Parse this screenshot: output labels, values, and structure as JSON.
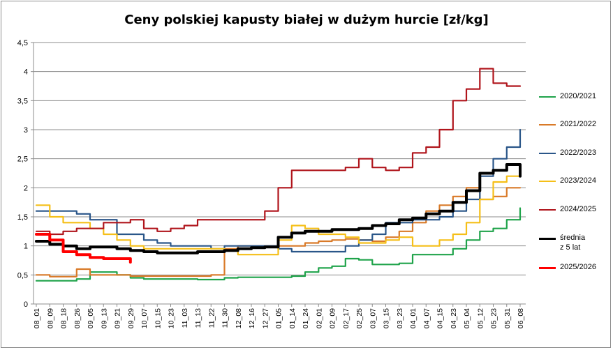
{
  "chart_data": {
    "type": "line",
    "title": "Ceny polskiej kapusty białej w dużym hurcie [zł/kg]",
    "xlabel": "",
    "ylabel": "",
    "ylim": [
      0,
      4.5
    ],
    "ytick_labels": [
      "0",
      "0,5",
      "1",
      "1,5",
      "2",
      "2,5",
      "3",
      "3,5",
      "4",
      "4,5"
    ],
    "grid": "horizontal",
    "legend_position": "right",
    "categories": [
      "08_01",
      "08_09",
      "08_18",
      "08_26",
      "09_05",
      "09_13",
      "09_21",
      "09_29",
      "10_07",
      "10_15",
      "10_23",
      "11_03",
      "11_13",
      "11_22",
      "11_30",
      "12_08",
      "12_16",
      "12_27",
      "01_05",
      "01_14",
      "01_24",
      "02_01",
      "02_09",
      "02_17",
      "02_25",
      "03_07",
      "03_15",
      "03_23",
      "04_01",
      "04_07",
      "04_15",
      "04_23",
      "05_04",
      "05_12",
      "05_23",
      "05_31",
      "06_08"
    ],
    "series": [
      {
        "name": "2020/2021",
        "color": "#1fa34a",
        "values": [
          0.4,
          0.4,
          0.4,
          0.43,
          0.55,
          0.55,
          0.5,
          0.45,
          0.43,
          0.43,
          0.43,
          0.43,
          0.42,
          0.42,
          0.45,
          0.46,
          0.46,
          0.46,
          0.46,
          0.48,
          0.55,
          0.62,
          0.65,
          0.78,
          0.76,
          0.68,
          0.68,
          0.7,
          0.85,
          0.85,
          0.85,
          0.95,
          1.1,
          1.25,
          1.3,
          1.45,
          1.65
        ]
      },
      {
        "name": "2021/2022",
        "color": "#d97a28",
        "values": [
          0.5,
          0.47,
          0.47,
          0.6,
          0.5,
          0.5,
          0.5,
          0.48,
          0.48,
          0.48,
          0.48,
          0.48,
          0.48,
          0.5,
          0.95,
          1.0,
          1.0,
          1.0,
          1.0,
          1.0,
          1.05,
          1.08,
          1.1,
          1.12,
          1.1,
          1.08,
          1.15,
          1.25,
          1.4,
          1.6,
          1.7,
          1.85,
          2.0,
          1.8,
          1.85,
          2.0,
          2.0
        ]
      },
      {
        "name": "2022/2023",
        "color": "#2a5689",
        "values": [
          1.6,
          1.6,
          1.6,
          1.55,
          1.45,
          1.45,
          1.2,
          1.2,
          1.1,
          1.05,
          1.0,
          1.0,
          1.0,
          0.95,
          1.0,
          1.0,
          1.0,
          1.0,
          0.95,
          0.9,
          0.9,
          0.9,
          0.9,
          1.0,
          1.1,
          1.2,
          1.4,
          1.4,
          1.45,
          1.45,
          1.5,
          1.6,
          1.8,
          2.2,
          2.5,
          2.7,
          3.0
        ]
      },
      {
        "name": "2023/2024",
        "color": "#f5bf18",
        "values": [
          1.7,
          1.5,
          1.4,
          1.4,
          1.3,
          1.2,
          1.1,
          1.0,
          0.95,
          0.95,
          0.95,
          0.95,
          0.95,
          0.95,
          0.92,
          0.85,
          0.85,
          0.85,
          1.1,
          1.35,
          1.3,
          1.2,
          1.2,
          1.15,
          1.05,
          1.05,
          1.1,
          1.15,
          1.0,
          1.0,
          1.1,
          1.2,
          1.4,
          1.8,
          2.1,
          2.2,
          2.2
        ]
      },
      {
        "name": "2024/2025",
        "color": "#b0151c",
        "values": [
          1.25,
          1.2,
          1.25,
          1.3,
          1.3,
          1.4,
          1.4,
          1.45,
          1.3,
          1.25,
          1.3,
          1.35,
          1.45,
          1.45,
          1.45,
          1.45,
          1.45,
          1.6,
          2.0,
          2.3,
          2.3,
          2.3,
          2.3,
          2.35,
          2.5,
          2.35,
          2.3,
          2.35,
          2.6,
          2.7,
          3.0,
          3.5,
          3.7,
          4.05,
          3.8,
          3.75,
          3.75
        ]
      },
      {
        "name": "średnia z 5 lat",
        "color": "#000000",
        "values": [
          1.08,
          1.03,
          1.0,
          0.95,
          0.98,
          0.98,
          0.95,
          0.92,
          0.9,
          0.88,
          0.88,
          0.88,
          0.9,
          0.9,
          0.92,
          0.95,
          0.97,
          0.98,
          1.15,
          1.22,
          1.25,
          1.25,
          1.28,
          1.28,
          1.3,
          1.35,
          1.38,
          1.45,
          1.48,
          1.55,
          1.6,
          1.75,
          1.95,
          2.25,
          2.3,
          2.4,
          2.2
        ]
      },
      {
        "name": "2025/2026",
        "color": "#ff0000",
        "values": [
          1.2,
          1.1,
          0.9,
          0.85,
          0.8,
          0.78,
          0.78,
          0.72,
          null,
          null,
          null,
          null,
          null,
          null,
          null,
          null,
          null,
          null,
          null,
          null,
          null,
          null,
          null,
          null,
          null,
          null,
          null,
          null,
          null,
          null,
          null,
          null,
          null,
          null,
          null,
          null,
          null
        ]
      }
    ]
  },
  "legend": {
    "items": [
      {
        "label": "2020/2021",
        "color": "#1fa34a"
      },
      {
        "label": "2021/2022",
        "color": "#d97a28"
      },
      {
        "label": "2022/2023",
        "color": "#2a5689"
      },
      {
        "label": "2023/2024",
        "color": "#f5bf18"
      },
      {
        "label": "2024/2025",
        "color": "#b0151c"
      },
      {
        "label": "średnia",
        "label2": "z 5 lat",
        "color": "#000000"
      },
      {
        "label": "2025/2026",
        "color": "#ff0000"
      }
    ]
  }
}
